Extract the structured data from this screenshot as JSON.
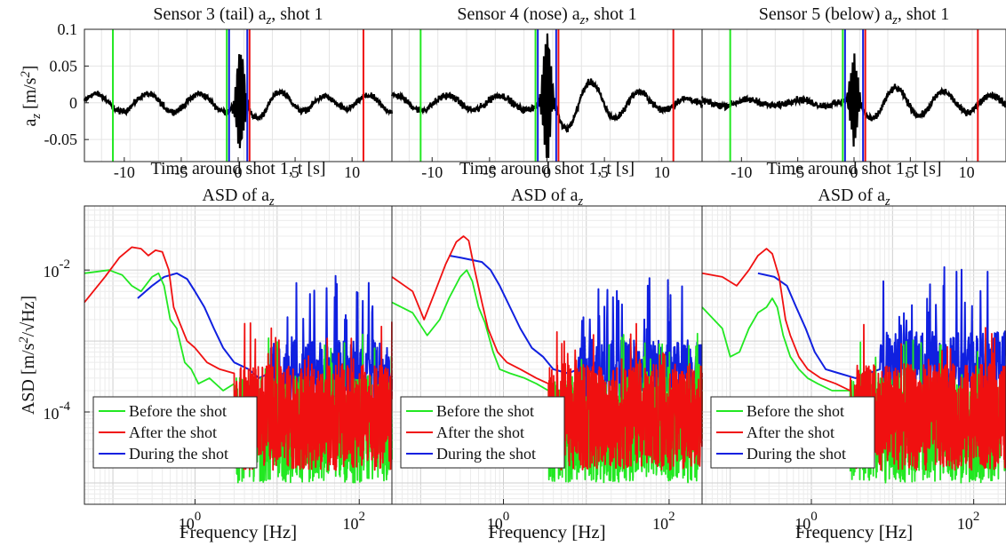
{
  "figure": {
    "colors": {
      "before": "#22e822",
      "after": "#f01010",
      "during": "#1020e0",
      "signal": "#000000",
      "grid": "#d6d6d6"
    },
    "y_label_top": "a_z [m/s^2]",
    "y_label_bottom": "ASD [m/s^2/√Hz]",
    "legend": [
      {
        "key": "before",
        "label": "Before the shot"
      },
      {
        "key": "after",
        "label": "After the shot"
      },
      {
        "key": "during",
        "label": "During the shot"
      }
    ]
  },
  "chart_data": [
    {
      "type": "line",
      "title": "Sensor 3 (tail) a_z, shot 1",
      "xlabel": "Time around shot 1, t [s]",
      "ylabel": "a_z [m/s^2]",
      "xlim": [
        -13.5,
        13.5
      ],
      "ylim": [
        -0.08,
        0.1
      ],
      "xticks": [
        -10,
        -5,
        0,
        5,
        10
      ],
      "yticks": [
        0.1,
        0.05,
        0,
        -0.05
      ],
      "grid": true,
      "signal": {
        "amp": 0.012,
        "noise": 0.0035,
        "spike": 0.075,
        "spike_t": 0.2,
        "post_amp": 0.033,
        "freq": 0.24,
        "decay": 0.07
      },
      "markers": [
        {
          "t": -11,
          "series": "before"
        },
        {
          "t": -1,
          "series": "before"
        },
        {
          "t": -0.8,
          "series": "during"
        },
        {
          "t": 0.8,
          "series": "during"
        },
        {
          "t": 1,
          "series": "after"
        },
        {
          "t": 11,
          "series": "after"
        }
      ]
    },
    {
      "type": "line",
      "title": "Sensor 4 (nose) a_z, shot 1",
      "xlabel": "Time around shot 1, t [s]",
      "ylabel": "",
      "xlim": [
        -13.5,
        13.5
      ],
      "ylim": [
        -0.08,
        0.1
      ],
      "xticks": [
        -10,
        -5,
        0,
        5,
        10
      ],
      "grid": true,
      "signal": {
        "amp": 0.01,
        "noise": 0.004,
        "spike": 0.09,
        "spike_t": 0.0,
        "post_amp": 0.038,
        "freq": 0.24,
        "decay": 0.08
      },
      "markers": [
        {
          "t": -11,
          "series": "before"
        },
        {
          "t": -1,
          "series": "before"
        },
        {
          "t": -0.8,
          "series": "during"
        },
        {
          "t": 0.8,
          "series": "during"
        },
        {
          "t": 1,
          "series": "after"
        },
        {
          "t": 11,
          "series": "after"
        }
      ]
    },
    {
      "type": "line",
      "title": "Sensor 5 (below) a_z, shot 1",
      "xlabel": "Time around shot 1, t [s]",
      "ylabel": "",
      "xlim": [
        -13.5,
        13.5
      ],
      "ylim": [
        -0.08,
        0.1
      ],
      "xticks": [
        -10,
        -5,
        0,
        5,
        10
      ],
      "grid": true,
      "signal": {
        "amp": 0.004,
        "noise": 0.004,
        "spike": 0.06,
        "spike_t": 0.0,
        "post_amp": 0.02,
        "freq": 0.24,
        "decay": 0.05
      },
      "markers": [
        {
          "t": -11,
          "series": "before"
        },
        {
          "t": -1,
          "series": "before"
        },
        {
          "t": -0.8,
          "series": "during"
        },
        {
          "t": 0.8,
          "series": "during"
        },
        {
          "t": 1,
          "series": "after"
        },
        {
          "t": 11,
          "series": "after"
        }
      ]
    },
    {
      "type": "line",
      "title": "ASD of a_z",
      "xlabel": "Frequency [Hz]",
      "ylabel": "ASD [m/s^2/√Hz]",
      "xscale": "log",
      "yscale": "log",
      "xlim": [
        0.045,
        250
      ],
      "ylim": [
        5e-06,
        0.08
      ],
      "xticks": [
        1,
        100
      ],
      "yticks": [
        0.01,
        0.0001
      ],
      "grid": true,
      "legend_position": "bottom-left",
      "series": [
        {
          "key": "before",
          "points": [
            [
              0.045,
              0.009
            ],
            [
              0.09,
              0.01
            ],
            [
              0.13,
              0.0085
            ],
            [
              0.17,
              0.006
            ],
            [
              0.22,
              0.005
            ],
            [
              0.3,
              0.008
            ],
            [
              0.36,
              0.009
            ],
            [
              0.42,
              0.006
            ],
            [
              0.5,
              0.002
            ],
            [
              0.6,
              0.0015
            ],
            [
              0.75,
              0.0005
            ],
            [
              0.9,
              0.0004
            ],
            [
              1.1,
              0.00025
            ],
            [
              1.5,
              0.0003
            ],
            [
              2.2,
              0.0002
            ],
            [
              3,
              0.00025
            ]
          ]
        },
        {
          "key": "after",
          "points": [
            [
              0.045,
              0.0035
            ],
            [
              0.08,
              0.008
            ],
            [
              0.12,
              0.015
            ],
            [
              0.17,
              0.021
            ],
            [
              0.22,
              0.02
            ],
            [
              0.27,
              0.016
            ],
            [
              0.33,
              0.019
            ],
            [
              0.4,
              0.018
            ],
            [
              0.48,
              0.01
            ],
            [
              0.55,
              0.003
            ],
            [
              0.65,
              0.0018
            ],
            [
              0.8,
              0.001
            ],
            [
              1,
              0.0008
            ],
            [
              1.4,
              0.0005
            ],
            [
              2,
              0.0004
            ],
            [
              3,
              0.00035
            ]
          ]
        },
        {
          "key": "during",
          "points": [
            [
              0.2,
              0.004
            ],
            [
              0.3,
              0.006
            ],
            [
              0.42,
              0.008
            ],
            [
              0.6,
              0.009
            ],
            [
              0.8,
              0.0075
            ],
            [
              1,
              0.005
            ],
            [
              1.3,
              0.003
            ],
            [
              1.7,
              0.0015
            ],
            [
              2.2,
              0.0008
            ],
            [
              3,
              0.0005
            ],
            [
              4.5,
              0.0004
            ],
            [
              6,
              0.0003
            ],
            [
              8,
              0.00035
            ]
          ]
        }
      ],
      "noise_region": {
        "before": 8e-05,
        "after": 0.00012,
        "during": 0.00045,
        "peak_start": 8,
        "peak_end": 150
      }
    },
    {
      "type": "line",
      "title": "ASD of a_z",
      "xlabel": "Frequency [Hz]",
      "ylabel": "",
      "xscale": "log",
      "yscale": "log",
      "xlim": [
        0.045,
        250
      ],
      "ylim": [
        5e-06,
        0.08
      ],
      "xticks": [
        1,
        100
      ],
      "grid": true,
      "legend_position": "bottom-left",
      "series": [
        {
          "key": "before",
          "points": [
            [
              0.045,
              0.0035
            ],
            [
              0.08,
              0.0025
            ],
            [
              0.12,
              0.0012
            ],
            [
              0.17,
              0.002
            ],
            [
              0.22,
              0.004
            ],
            [
              0.3,
              0.008
            ],
            [
              0.36,
              0.01
            ],
            [
              0.42,
              0.007
            ],
            [
              0.5,
              0.003
            ],
            [
              0.6,
              0.0018
            ],
            [
              0.75,
              0.0007
            ],
            [
              0.9,
              0.0004
            ],
            [
              1.2,
              0.00035
            ],
            [
              1.8,
              0.0003
            ],
            [
              2.5,
              0.00025
            ],
            [
              3.5,
              0.0002
            ]
          ]
        },
        {
          "key": "after",
          "points": [
            [
              0.045,
              0.008
            ],
            [
              0.08,
              0.005
            ],
            [
              0.11,
              0.002
            ],
            [
              0.15,
              0.005
            ],
            [
              0.2,
              0.012
            ],
            [
              0.27,
              0.025
            ],
            [
              0.33,
              0.03
            ],
            [
              0.38,
              0.026
            ],
            [
              0.45,
              0.01
            ],
            [
              0.55,
              0.0035
            ],
            [
              0.65,
              0.0015
            ],
            [
              0.85,
              0.0007
            ],
            [
              1.1,
              0.0005
            ],
            [
              1.6,
              0.0004
            ],
            [
              2.5,
              0.0003
            ],
            [
              3.5,
              0.00025
            ]
          ]
        },
        {
          "key": "during",
          "points": [
            [
              0.22,
              0.016
            ],
            [
              0.3,
              0.015
            ],
            [
              0.4,
              0.014
            ],
            [
              0.55,
              0.013
            ],
            [
              0.7,
              0.01
            ],
            [
              0.9,
              0.006
            ],
            [
              1.2,
              0.003
            ],
            [
              1.6,
              0.0015
            ],
            [
              2.2,
              0.0008
            ],
            [
              3,
              0.0006
            ],
            [
              4,
              0.0004
            ],
            [
              6,
              0.00035
            ],
            [
              8,
              0.0004
            ]
          ]
        }
      ],
      "noise_region": {
        "before": 8e-05,
        "after": 0.00012,
        "during": 0.00045,
        "peak_start": 8,
        "peak_end": 150
      }
    },
    {
      "type": "line",
      "title": "ASD of a_z",
      "xlabel": "Frequency [Hz]",
      "ylabel": "",
      "xscale": "log",
      "yscale": "log",
      "xlim": [
        0.045,
        250
      ],
      "ylim": [
        5e-06,
        0.08
      ],
      "xticks": [
        1,
        100
      ],
      "grid": true,
      "legend_position": "bottom-left",
      "series": [
        {
          "key": "before",
          "points": [
            [
              0.045,
              0.003
            ],
            [
              0.08,
              0.0015
            ],
            [
              0.1,
              0.0006
            ],
            [
              0.13,
              0.0007
            ],
            [
              0.17,
              0.0015
            ],
            [
              0.22,
              0.0025
            ],
            [
              0.28,
              0.003
            ],
            [
              0.33,
              0.004
            ],
            [
              0.38,
              0.003
            ],
            [
              0.45,
              0.0012
            ],
            [
              0.55,
              0.0006
            ],
            [
              0.7,
              0.0004
            ],
            [
              0.9,
              0.0003
            ],
            [
              1.2,
              0.00025
            ],
            [
              1.8,
              0.0002
            ],
            [
              3,
              0.0002
            ]
          ]
        },
        {
          "key": "after",
          "points": [
            [
              0.045,
              0.009
            ],
            [
              0.08,
              0.008
            ],
            [
              0.12,
              0.006
            ],
            [
              0.17,
              0.01
            ],
            [
              0.22,
              0.016
            ],
            [
              0.28,
              0.02
            ],
            [
              0.33,
              0.017
            ],
            [
              0.4,
              0.008
            ],
            [
              0.48,
              0.002
            ],
            [
              0.55,
              0.0012
            ],
            [
              0.7,
              0.0006
            ],
            [
              0.9,
              0.0004
            ],
            [
              1.3,
              0.0003
            ],
            [
              2,
              0.00025
            ],
            [
              3,
              0.0002
            ]
          ]
        },
        {
          "key": "during",
          "points": [
            [
              0.22,
              0.009
            ],
            [
              0.35,
              0.008
            ],
            [
              0.5,
              0.006
            ],
            [
              0.65,
              0.003
            ],
            [
              0.85,
              0.0015
            ],
            [
              1.1,
              0.0007
            ],
            [
              1.5,
              0.0004
            ],
            [
              2.2,
              0.00035
            ],
            [
              3.5,
              0.0003
            ],
            [
              5,
              0.00035
            ],
            [
              7,
              0.0004
            ]
          ]
        }
      ],
      "noise_region": {
        "before": 8e-05,
        "after": 0.00012,
        "during": 0.0006,
        "peak_start": 7,
        "peak_end": 150
      }
    }
  ]
}
